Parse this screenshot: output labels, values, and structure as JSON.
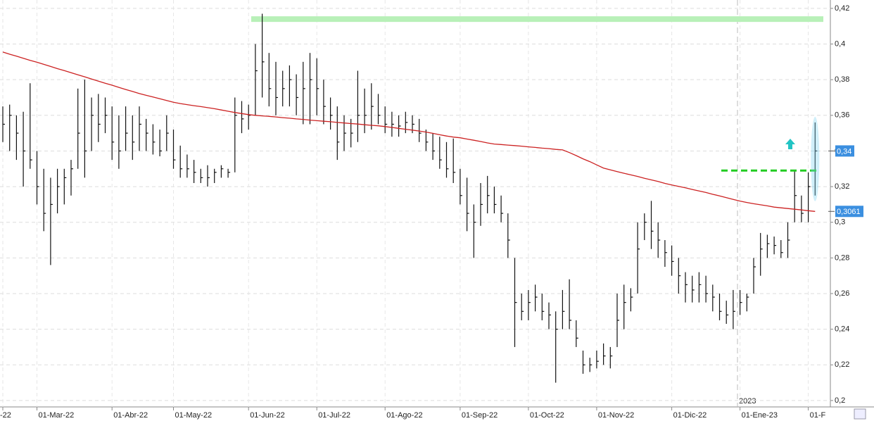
{
  "chart_data": {
    "type": "ohlc",
    "categories": [
      "-22",
      null,
      null,
      null,
      null,
      "01-Mar-22",
      null,
      null,
      null,
      null,
      null,
      null,
      null,
      null,
      null,
      null,
      "01-Abr-22",
      null,
      null,
      null,
      null,
      null,
      null,
      null,
      null,
      "01-May-22",
      null,
      null,
      null,
      null,
      null,
      null,
      null,
      null,
      null,
      null,
      "01-Jun-22",
      null,
      null,
      null,
      null,
      null,
      null,
      null,
      null,
      null,
      "01-Jul-22",
      null,
      null,
      null,
      null,
      null,
      null,
      null,
      null,
      null,
      "01-Ago-22",
      null,
      null,
      null,
      null,
      null,
      null,
      null,
      null,
      null,
      null,
      "01-Sep-22",
      null,
      null,
      null,
      null,
      null,
      null,
      null,
      null,
      null,
      "01-Oct-22",
      null,
      null,
      null,
      null,
      null,
      null,
      null,
      null,
      null,
      "01-Nov-22",
      null,
      null,
      null,
      null,
      null,
      null,
      null,
      null,
      null,
      null,
      "01-Dic-22",
      null,
      null,
      null,
      null,
      null,
      null,
      null,
      null,
      null,
      "01-Ene-23",
      null,
      null,
      null,
      null,
      null,
      null,
      null,
      null,
      null,
      "01-F",
      null
    ],
    "high": [
      0.365,
      0.366,
      0.36,
      0.362,
      0.378,
      0.34,
      0.33,
      0.325,
      0.33,
      0.33,
      0.335,
      0.375,
      0.38,
      0.37,
      0.372,
      0.37,
      0.365,
      0.36,
      0.365,
      0.36,
      0.365,
      0.358,
      0.355,
      0.352,
      0.36,
      0.352,
      0.343,
      0.338,
      0.335,
      0.33,
      0.332,
      0.33,
      0.332,
      0.33,
      0.37,
      0.368,
      0.366,
      0.4,
      0.417,
      0.395,
      0.39,
      0.385,
      0.388,
      0.383,
      0.39,
      0.395,
      0.392,
      0.38,
      0.37,
      0.365,
      0.36,
      0.358,
      0.385,
      0.375,
      0.378,
      0.372,
      0.365,
      0.362,
      0.36,
      0.362,
      0.36,
      0.358,
      0.352,
      0.35,
      0.348,
      0.345,
      0.347,
      0.33,
      0.325,
      0.31,
      0.322,
      0.326,
      0.32,
      0.315,
      0.305,
      0.28,
      0.26,
      0.262,
      0.265,
      0.26,
      0.255,
      0.25,
      0.262,
      0.268,
      0.245,
      0.228,
      0.224,
      0.228,
      0.232,
      0.23,
      0.26,
      0.265,
      0.263,
      0.3,
      0.305,
      0.312,
      0.3,
      0.29,
      0.287,
      0.28,
      0.272,
      0.27,
      0.272,
      0.27,
      0.265,
      0.26,
      0.256,
      0.262,
      0.262,
      0.26,
      0.28,
      0.294,
      0.293,
      0.292,
      0.29,
      0.3,
      0.329,
      0.315,
      0.328,
      0.356
    ],
    "low": [
      0.345,
      0.34,
      0.335,
      0.32,
      0.33,
      0.31,
      0.295,
      0.276,
      0.305,
      0.31,
      0.315,
      0.33,
      0.325,
      0.34,
      0.345,
      0.35,
      0.335,
      0.33,
      0.34,
      0.335,
      0.34,
      0.34,
      0.338,
      0.337,
      0.34,
      0.33,
      0.325,
      0.325,
      0.322,
      0.322,
      0.32,
      0.322,
      0.325,
      0.325,
      0.328,
      0.35,
      0.352,
      0.36,
      0.37,
      0.365,
      0.36,
      0.365,
      0.365,
      0.36,
      0.355,
      0.355,
      0.36,
      0.355,
      0.352,
      0.335,
      0.34,
      0.342,
      0.345,
      0.35,
      0.352,
      0.355,
      0.35,
      0.348,
      0.348,
      0.35,
      0.35,
      0.345,
      0.34,
      0.335,
      0.33,
      0.325,
      0.322,
      0.31,
      0.295,
      0.28,
      0.298,
      0.305,
      0.305,
      0.3,
      0.28,
      0.23,
      0.245,
      0.245,
      0.25,
      0.245,
      0.24,
      0.21,
      0.24,
      0.24,
      0.23,
      0.215,
      0.216,
      0.218,
      0.22,
      0.218,
      0.23,
      0.24,
      0.25,
      0.26,
      0.29,
      0.285,
      0.28,
      0.275,
      0.27,
      0.26,
      0.255,
      0.255,
      0.255,
      0.255,
      0.25,
      0.245,
      0.243,
      0.24,
      0.248,
      0.25,
      0.26,
      0.27,
      0.28,
      0.282,
      0.28,
      0.28,
      0.3,
      0.3,
      0.3,
      0.315
    ],
    "close": [
      0.355,
      0.36,
      0.35,
      0.34,
      0.335,
      0.32,
      0.305,
      0.31,
      0.32,
      0.325,
      0.33,
      0.35,
      0.34,
      0.36,
      0.355,
      0.36,
      0.345,
      0.34,
      0.35,
      0.345,
      0.355,
      0.35,
      0.345,
      0.34,
      0.35,
      0.335,
      0.33,
      0.33,
      0.328,
      0.325,
      0.325,
      0.328,
      0.33,
      0.328,
      0.36,
      0.358,
      0.36,
      0.385,
      0.39,
      0.375,
      0.37,
      0.375,
      0.38,
      0.37,
      0.375,
      0.38,
      0.375,
      0.365,
      0.36,
      0.345,
      0.35,
      0.35,
      0.36,
      0.36,
      0.365,
      0.36,
      0.355,
      0.355,
      0.354,
      0.356,
      0.355,
      0.35,
      0.345,
      0.34,
      0.335,
      0.33,
      0.328,
      0.315,
      0.305,
      0.3,
      0.31,
      0.315,
      0.31,
      0.305,
      0.29,
      0.255,
      0.25,
      0.255,
      0.258,
      0.25,
      0.248,
      0.24,
      0.25,
      0.245,
      0.235,
      0.22,
      0.22,
      0.222,
      0.225,
      0.225,
      0.245,
      0.255,
      0.258,
      0.285,
      0.3,
      0.295,
      0.29,
      0.283,
      0.278,
      0.27,
      0.265,
      0.262,
      0.265,
      0.26,
      0.258,
      0.25,
      0.248,
      0.25,
      0.255,
      0.258,
      0.275,
      0.285,
      0.288,
      0.287,
      0.283,
      0.29,
      0.315,
      0.305,
      0.32,
      0.34
    ],
    "moving_average": [
      0.3955,
      0.3943,
      0.3932,
      0.392,
      0.3908,
      0.3898,
      0.3886,
      0.3874,
      0.3862,
      0.3851,
      0.3839,
      0.3827,
      0.3816,
      0.3804,
      0.3792,
      0.378,
      0.3769,
      0.3757,
      0.3745,
      0.3734,
      0.3722,
      0.3712,
      0.3703,
      0.3693,
      0.3683,
      0.3673,
      0.3666,
      0.366,
      0.3654,
      0.3649,
      0.3643,
      0.3637,
      0.363,
      0.3623,
      0.3616,
      0.361,
      0.3604,
      0.36,
      0.3597,
      0.3594,
      0.3591,
      0.3587,
      0.3584,
      0.358,
      0.3577,
      0.3573,
      0.357,
      0.3567,
      0.3564,
      0.356,
      0.3557,
      0.3554,
      0.3551,
      0.3547,
      0.3544,
      0.3541,
      0.3537,
      0.3532,
      0.3527,
      0.3522,
      0.3517,
      0.3512,
      0.3506,
      0.3499,
      0.3491,
      0.3484,
      0.3478,
      0.3474,
      0.3467,
      0.346,
      0.3453,
      0.3445,
      0.3439,
      0.3436,
      0.3433,
      0.343,
      0.3427,
      0.3423,
      0.342,
      0.3416,
      0.3413,
      0.3409,
      0.3406,
      0.3391,
      0.3374,
      0.3356,
      0.334,
      0.3322,
      0.3304,
      0.3294,
      0.3284,
      0.3275,
      0.3266,
      0.3257,
      0.3247,
      0.3238,
      0.3229,
      0.3218,
      0.3209,
      0.3201,
      0.3193,
      0.3184,
      0.3176,
      0.3167,
      0.3157,
      0.3148,
      0.3138,
      0.3128,
      0.3119,
      0.3111,
      0.3104,
      0.3098,
      0.3092,
      0.3085,
      0.3081,
      0.3077,
      0.3073,
      0.3069,
      0.3065,
      0.3061
    ],
    "bar_color": "#111111",
    "ma_color": "#cc2222",
    "resistance_level": 0.414,
    "breakout_level": 0.329,
    "last_price": {
      "value": 0.34,
      "label": "0,34"
    },
    "ma_last": {
      "value": 0.3061,
      "label": "0,3061"
    },
    "year_label": "2023",
    "ylim": [
      0.1964,
      0.4247
    ],
    "yticks": [
      {
        "value": 0.2,
        "label": "0,2"
      },
      {
        "value": 0.22,
        "label": "0,22"
      },
      {
        "value": 0.24,
        "label": "0,24"
      },
      {
        "value": 0.26,
        "label": "0,26"
      },
      {
        "value": 0.28,
        "label": "0,28"
      },
      {
        "value": 0.3,
        "label": "0,3"
      },
      {
        "value": 0.32,
        "label": "0,32"
      },
      {
        "value": 0.34,
        "label": "0,34"
      },
      {
        "value": 0.36,
        "label": "0,36"
      },
      {
        "value": 0.38,
        "label": "0,38"
      },
      {
        "value": 0.4,
        "label": "0,4"
      },
      {
        "value": 0.42,
        "label": "0,42"
      }
    ],
    "grid": true
  }
}
